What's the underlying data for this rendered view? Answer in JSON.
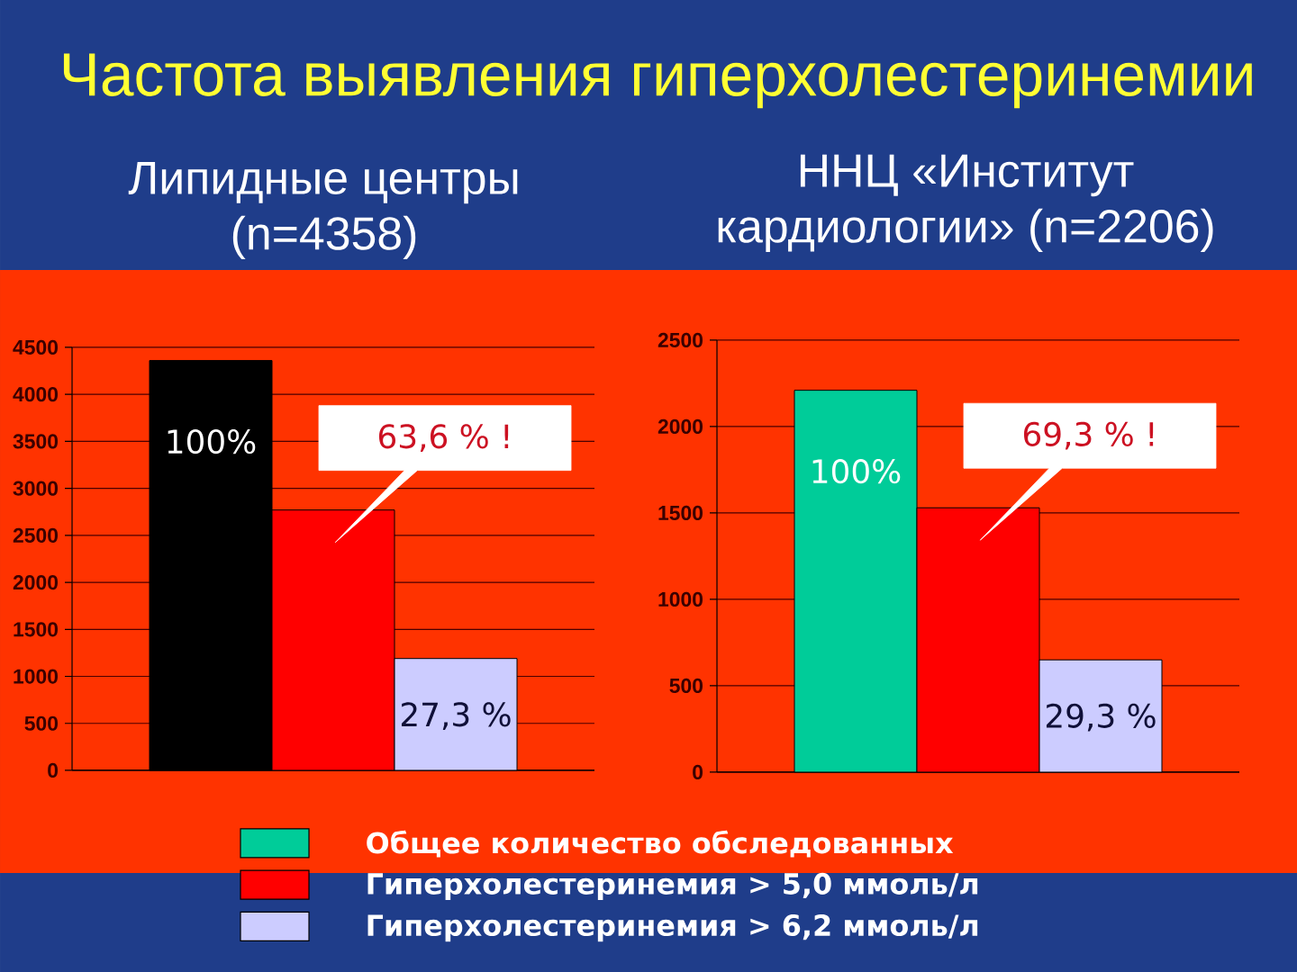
{
  "chart_data": [
    {
      "type": "bar",
      "title": "Частота выявления гиперхолестеринемии",
      "subtitle": "Липидные центры (n=4358)",
      "categories": [
        null
      ],
      "series": [
        {
          "color": "#000000",
          "values": [
            4360
          ]
        },
        {
          "color": "#ff0000",
          "values": [
            2770
          ]
        },
        {
          "color": "#ccccff",
          "values": [
            1190
          ]
        }
      ],
      "annotations": [
        {
          "text": "100%",
          "y": 4360
        },
        "63,6 % !",
        {
          "text": "27,3 %",
          "y": 1190
        }
      ],
      "ylim": [
        0,
        4500
      ],
      "yticks": [
        0,
        500,
        1000,
        1500,
        2000,
        2500,
        3000,
        3500,
        4000,
        4500
      ],
      "grid": "y"
    },
    {
      "type": "bar",
      "subtitle": "ННЦ «Институт кардиологии» (n=2206)",
      "categories": [
        null
      ],
      "series": [
        {
          "name": "Общее количество обследованных",
          "color": "#00cc99",
          "values": [
            2210
          ]
        },
        {
          "name": "Гиперхолестеринемия > 5,0 ммоль/л",
          "color": "#ff0000",
          "values": [
            1530
          ]
        },
        {
          "name": "Гиперхолестеринемия > 6,2 ммоль/л",
          "color": "#ccccff",
          "values": [
            650
          ]
        }
      ],
      "annotations": [
        {
          "text": "100%",
          "y": 2210
        },
        "69,3 % !",
        {
          "text": "29,3 %",
          "y": 650
        }
      ],
      "ylim": [
        0,
        2500
      ],
      "yticks": [
        0,
        500,
        1000,
        1500,
        2000,
        2500
      ],
      "grid": "y",
      "legend": "bottom"
    }
  ]
}
